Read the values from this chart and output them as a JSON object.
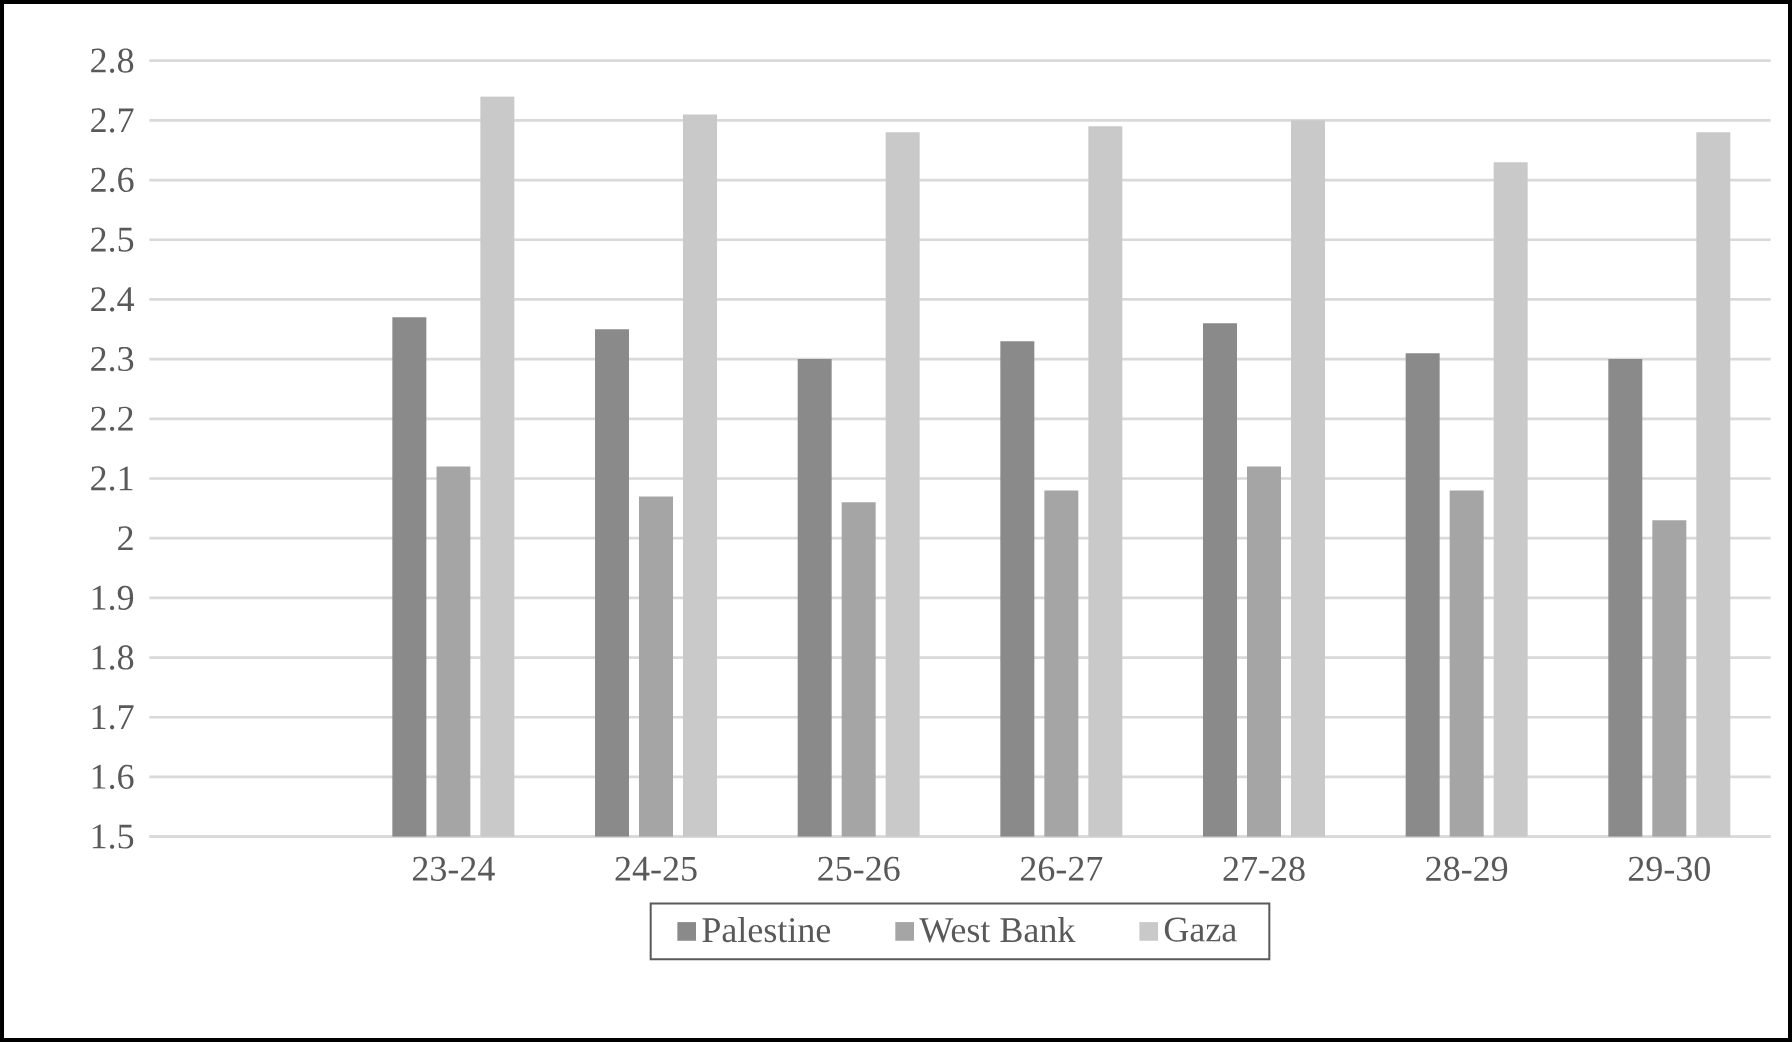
{
  "chart_data": {
    "type": "bar",
    "categories": [
      null,
      "23-24",
      "24-25",
      "25-26",
      "26-27",
      "27-28",
      "28-29",
      "29-30"
    ],
    "series": [
      {
        "name": "Palestine",
        "color": "#8a8a8a",
        "values": [
          null,
          2.37,
          2.35,
          2.3,
          2.33,
          2.36,
          2.31,
          2.3
        ]
      },
      {
        "name": "West Bank",
        "color": "#a5a5a5",
        "values": [
          null,
          2.12,
          2.07,
          2.06,
          2.08,
          2.12,
          2.08,
          2.03
        ]
      },
      {
        "name": "Gaza",
        "color": "#c9c9c9",
        "values": [
          null,
          2.74,
          2.71,
          2.68,
          2.69,
          2.7,
          2.63,
          2.68
        ]
      }
    ],
    "ylim": [
      1.5,
      2.8
    ],
    "yticks": [
      1.5,
      1.6,
      1.7,
      1.8,
      1.9,
      2,
      2.1,
      2.2,
      2.3,
      2.4,
      2.5,
      2.6,
      2.7,
      2.8
    ],
    "grid": "y",
    "legend": "bottom"
  }
}
